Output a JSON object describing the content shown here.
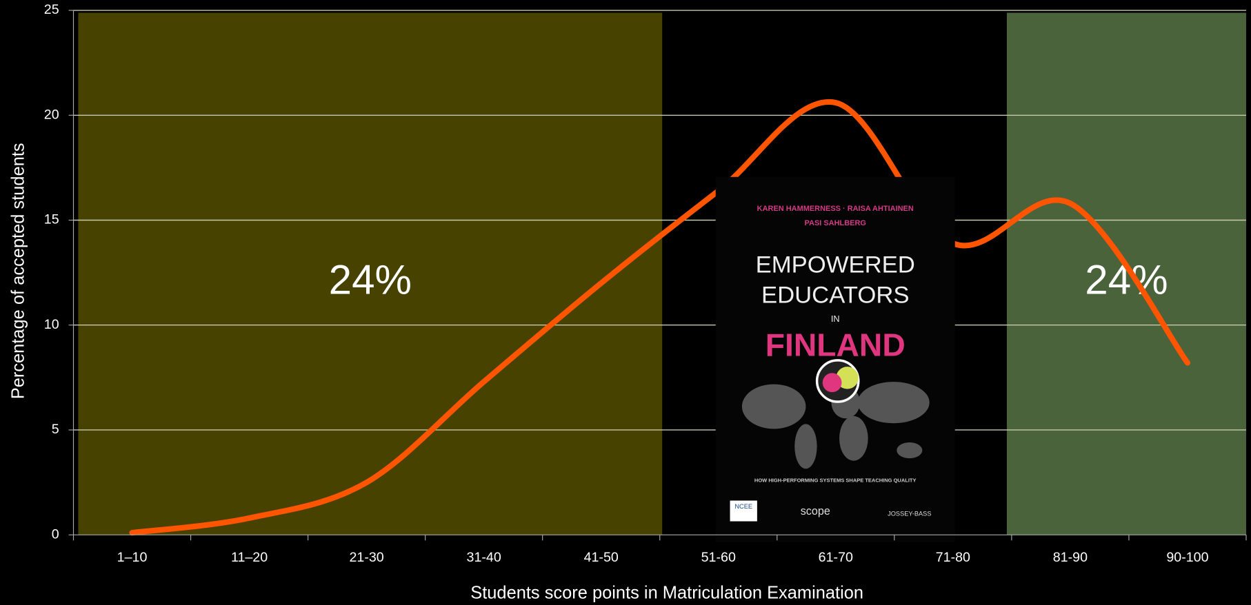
{
  "chart_data": {
    "type": "line",
    "x_label": "Students score points in Matriculation Examination",
    "y_label": "Percentage of accepted students",
    "categories": [
      "1–10",
      "11–20",
      "21-30",
      "31-40",
      "41-50",
      "51-60",
      "61-70",
      "71-80",
      "81-90",
      "90-100"
    ],
    "series": [
      {
        "color": "#ff5500",
        "values": [
          0.1,
          0.8,
          2.5,
          7.3,
          12,
          16.4,
          20.6,
          13.9,
          15.8,
          8.2
        ]
      }
    ],
    "ylim": [
      0,
      25
    ],
    "yticks": [
      0,
      5,
      10,
      15,
      20,
      25
    ],
    "grid": true,
    "highlights": [
      {
        "label": "24%",
        "color": "#474200"
      },
      {
        "label": "24%",
        "color": "#4a633b"
      }
    ]
  },
  "book_cover": {
    "authors_line1": "KAREN HAMMERNESS · RAISA AHTIAINEN",
    "authors_line2": "PASI SAHLBERG",
    "title_line1": "EMPOWERED",
    "title_line2": "EDUCATORS",
    "title_line3": "IN",
    "title_line4": "FINLAND",
    "subtitle": "HOW HIGH-PERFORMING SYSTEMS SHAPE TEACHING QUALITY",
    "publishers": [
      "NCEE",
      "scope",
      "JOSSEY-BASS"
    ]
  }
}
